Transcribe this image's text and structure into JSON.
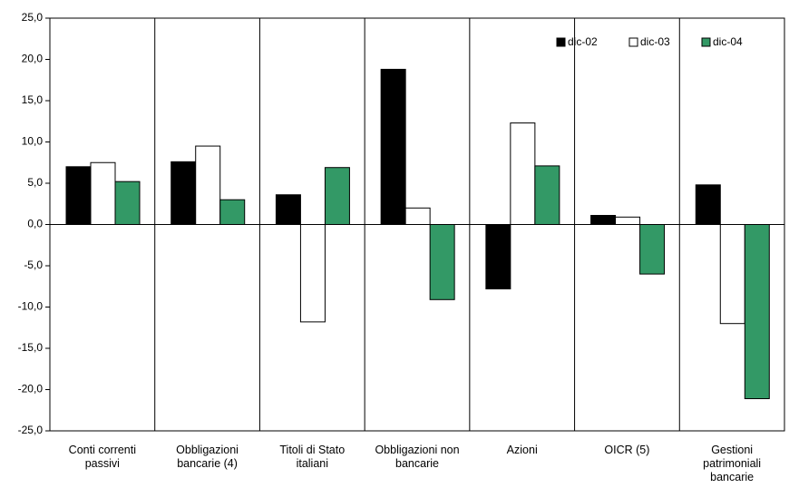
{
  "chart_data": {
    "type": "bar",
    "categories": [
      "Conti correnti\npassivi",
      "Obbligazioni\nbancarie (4)",
      "Titoli di Stato\nitaliani",
      "Obbligazioni non\nbancarie",
      "Azioni",
      "OICR (5)",
      "Gestioni\npatrimoniali\nbancarie"
    ],
    "series": [
      {
        "name": "dic-02",
        "color": "#000000",
        "values": [
          7.0,
          7.6,
          3.6,
          18.8,
          -7.8,
          1.1,
          4.8
        ]
      },
      {
        "name": "dic-03",
        "color": "#ffffff",
        "values": [
          7.5,
          9.5,
          -11.8,
          2.0,
          12.3,
          0.9,
          -12.0
        ]
      },
      {
        "name": "dic-04",
        "color": "#339966",
        "values": [
          5.2,
          3.0,
          6.9,
          -9.1,
          7.1,
          -6.0,
          -21.1
        ]
      }
    ],
    "ylim": [
      -25,
      25
    ],
    "yticks": [
      {
        "value": -25,
        "label": "-25,0"
      },
      {
        "value": -20,
        "label": "-20,0"
      },
      {
        "value": -15,
        "label": "-15,0"
      },
      {
        "value": -10,
        "label": "-10,0"
      },
      {
        "value": -5,
        "label": "-5,0"
      },
      {
        "value": 0,
        "label": "0,0"
      },
      {
        "value": 5,
        "label": "5,0"
      },
      {
        "value": 10,
        "label": "10,0"
      },
      {
        "value": 15,
        "label": "15,0"
      },
      {
        "value": 20,
        "label": "20,0"
      },
      {
        "value": 25,
        "label": "25,0"
      }
    ],
    "legend": "top-right"
  }
}
